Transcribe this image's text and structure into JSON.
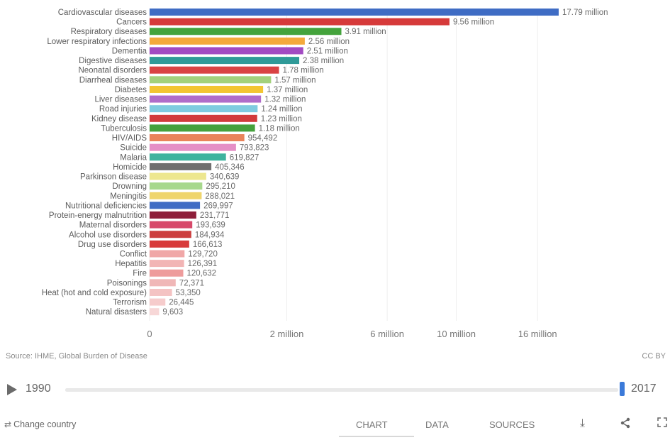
{
  "chart_data": {
    "type": "bar",
    "orientation": "horizontal",
    "categories": [
      "Cardiovascular diseases",
      "Cancers",
      "Respiratory diseases",
      "Lower respiratory infections",
      "Dementia",
      "Digestive diseases",
      "Neonatal disorders",
      "Diarrheal diseases",
      "Diabetes",
      "Liver diseases",
      "Road injuries",
      "Kidney disease",
      "Tuberculosis",
      "HIV/AIDS",
      "Suicide",
      "Malaria",
      "Homicide",
      "Parkinson disease",
      "Drowning",
      "Meningitis",
      "Nutritional deficiencies",
      "Protein-energy malnutrition",
      "Maternal disorders",
      "Alcohol use disorders",
      "Drug use disorders",
      "Conflict",
      "Hepatitis",
      "Fire",
      "Poisonings",
      "Heat (hot and cold exposure)",
      "Terrorism",
      "Natural disasters"
    ],
    "values": [
      17790000,
      9560000,
      3910000,
      2560000,
      2510000,
      2380000,
      1780000,
      1570000,
      1370000,
      1320000,
      1240000,
      1230000,
      1180000,
      954492,
      793823,
      619827,
      405346,
      340639,
      295210,
      288021,
      269997,
      231771,
      193639,
      184934,
      166613,
      129720,
      126391,
      120632,
      72371,
      53350,
      26445,
      9603
    ],
    "value_labels": [
      "17.79 million",
      "9.56 million",
      "3.91 million",
      "2.56 million",
      "2.51 million",
      "2.38 million",
      "1.78 million",
      "1.57 million",
      "1.37 million",
      "1.32 million",
      "1.24 million",
      "1.23 million",
      "1.18 million",
      "954,492",
      "793,823",
      "619,827",
      "405,346",
      "340,639",
      "295,210",
      "288,021",
      "269,997",
      "231,771",
      "193,639",
      "184,934",
      "166,613",
      "129,720",
      "126,391",
      "120,632",
      "72,371",
      "53,350",
      "26,445",
      "9,603"
    ],
    "colors": [
      "#3f6cc4",
      "#d63a3a",
      "#44a33c",
      "#f4a93b",
      "#a24ac2",
      "#2f9a98",
      "#d94343",
      "#a3d17c",
      "#f3c531",
      "#b06cc9",
      "#7fcbe0",
      "#d23b3b",
      "#45a13c",
      "#e9835a",
      "#e58fc6",
      "#3fb39e",
      "#6f6f6f",
      "#ede78f",
      "#a7d88c",
      "#efd56c",
      "#3f6cc4",
      "#8e1f3a",
      "#d7496a",
      "#cc3e3e",
      "#d83a3a",
      "#f0a7a7",
      "#f2b5b5",
      "#ee9c9c",
      "#f0b7b7",
      "#f4c3c3",
      "#f6cccc",
      "#f7d7d7"
    ],
    "x_ticks": [
      "0",
      "2 million",
      "6 million",
      "10 million",
      "16 million"
    ],
    "x_tick_values": [
      0,
      2000000,
      6000000,
      10000000,
      16000000
    ],
    "xlim": [
      0,
      17790000
    ],
    "x_scale": "sqrt",
    "grid": true
  },
  "source": "Source: IHME, Global Burden of Disease",
  "license": "CC BY",
  "timeline": {
    "start_year": "1990",
    "end_year": "2017",
    "position": 1.0
  },
  "footer": {
    "change_country": "Change country",
    "tabs": [
      "CHART",
      "DATA",
      "SOURCES"
    ],
    "active_tab": "CHART"
  },
  "icons": {
    "play": "play-icon",
    "swap": "swap-arrows-icon",
    "download": "download-icon",
    "share": "share-icon",
    "fullscreen": "fullscreen-icon"
  }
}
